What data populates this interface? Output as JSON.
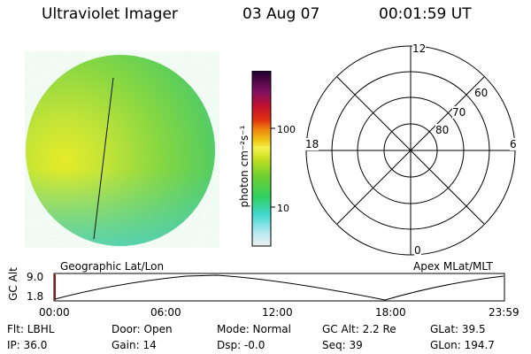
{
  "header": {
    "instrument": "Ultraviolet Imager",
    "date": "03 Aug 07",
    "time": "00:01:59  UT"
  },
  "image_panel": {
    "label": "Geographic Lat/Lon"
  },
  "colorbar": {
    "unit_label": "photon cm⁻²s⁻¹",
    "ticks": [
      "100",
      "10"
    ]
  },
  "polar_plot": {
    "label": "Apex  MLat/MLT",
    "mlt_labels": {
      "top": "12",
      "left": "18",
      "right": "6",
      "bottom": "0"
    },
    "lat_labels": [
      "60",
      "70",
      "80"
    ]
  },
  "altitude_plot": {
    "ylabel": "GC Alt",
    "yticks": [
      "9.0",
      "1.8"
    ],
    "xticks": [
      "00:00",
      "06:00",
      "12:00",
      "18:00",
      "23:59"
    ]
  },
  "status": {
    "flt": "Flt: LBHL",
    "ip": "IP: 36.0",
    "door": "Door: Open",
    "gain": "Gain: 14",
    "mode": "Mode:  Normal",
    "dsp": "Dsp:   -0.0",
    "gc_alt": "GC Alt: 2.2 Re",
    "seq": "Seq: 39",
    "glat": "GLat:   39.5",
    "glon": "GLon: 194.7"
  }
}
